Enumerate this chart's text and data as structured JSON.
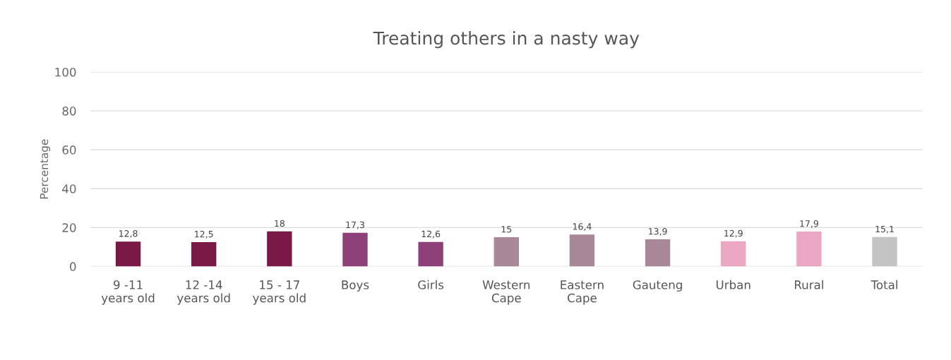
{
  "chart_data": {
    "type": "bar",
    "title": "Treating others in a nasty way",
    "ylabel": "Percentage",
    "categories": [
      "9 -11\nyears old",
      "12 -14\nyears old",
      "15 - 17\nyears old",
      "Boys",
      "Girls",
      "Western\nCape",
      "Eastern\nCape",
      "Gauteng",
      "Urban",
      "Rural",
      "Total"
    ],
    "values": [
      12.8,
      12.5,
      18,
      17.3,
      12.6,
      15,
      16.4,
      13.9,
      12.9,
      17.9,
      15.1
    ],
    "value_labels": [
      "12,8",
      "12,5",
      "18",
      "17,3",
      "12,6",
      "15",
      "16,4",
      "13,9",
      "12,9",
      "17,9",
      "15,1"
    ],
    "colors": [
      "#7a1846",
      "#7a1846",
      "#7a1846",
      "#8e4079",
      "#8e4079",
      "#a88898",
      "#a88898",
      "#a88898",
      "#eba6c4",
      "#eba6c4",
      "#c4c4c4"
    ],
    "ylim": [
      0,
      100
    ],
    "yticks": [
      0,
      20,
      40,
      60,
      80,
      100
    ],
    "grid": "y"
  }
}
